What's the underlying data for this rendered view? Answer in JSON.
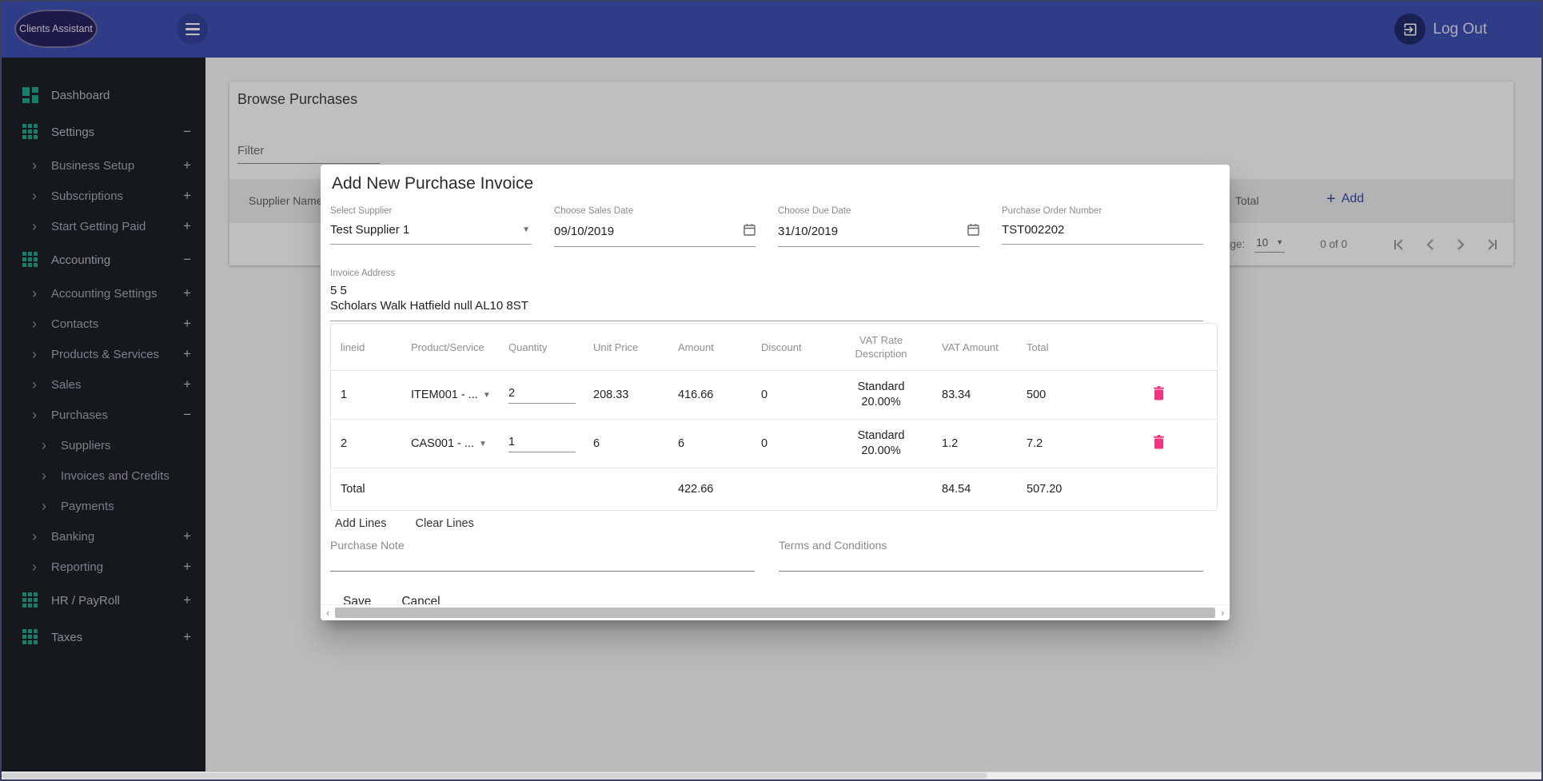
{
  "colors": {
    "accent": "#3f51b5",
    "teal": "#22a98c",
    "pink": "#f1357e",
    "add_link": "#3949ab"
  },
  "topbar": {
    "brand": "Clients Assistant",
    "logout_label": "Log Out"
  },
  "sidebar": {
    "items": [
      {
        "label": "Dashboard",
        "level": 0,
        "icon": "dashboard",
        "suffix": ""
      },
      {
        "label": "Settings",
        "level": 0,
        "icon": "apps",
        "suffix": "−"
      },
      {
        "label": "Business Setup",
        "level": 1,
        "icon": "",
        "suffix": "+"
      },
      {
        "label": "Subscriptions",
        "level": 1,
        "icon": "",
        "suffix": "+"
      },
      {
        "label": "Start Getting Paid",
        "level": 1,
        "icon": "",
        "suffix": "+"
      },
      {
        "label": "Accounting",
        "level": 0,
        "icon": "apps",
        "suffix": "−"
      },
      {
        "label": "Accounting Settings",
        "level": 1,
        "icon": "",
        "suffix": "+"
      },
      {
        "label": "Contacts",
        "level": 1,
        "icon": "",
        "suffix": "+"
      },
      {
        "label": "Products & Services",
        "level": 1,
        "icon": "",
        "suffix": "+"
      },
      {
        "label": "Sales",
        "level": 1,
        "icon": "",
        "suffix": "+"
      },
      {
        "label": "Purchases",
        "level": 1,
        "icon": "",
        "suffix": "−"
      },
      {
        "label": "Suppliers",
        "level": 2,
        "icon": "",
        "suffix": ""
      },
      {
        "label": "Invoices and Credits",
        "level": 2,
        "icon": "",
        "suffix": ""
      },
      {
        "label": "Payments",
        "level": 2,
        "icon": "",
        "suffix": ""
      },
      {
        "label": "Banking",
        "level": 1,
        "icon": "",
        "suffix": "+"
      },
      {
        "label": "Reporting",
        "level": 1,
        "icon": "",
        "suffix": "+"
      },
      {
        "label": "HR / PayRoll",
        "level": 0,
        "icon": "apps",
        "suffix": "+"
      },
      {
        "label": "Taxes",
        "level": 0,
        "icon": "apps",
        "suffix": "+"
      }
    ]
  },
  "background": {
    "page_title": "Browse Purchases",
    "filter_placeholder": "Filter",
    "supplier_header": "Supplier Name",
    "total_header": "Total",
    "add_label": "Add",
    "pagination": {
      "page_label": "page:",
      "page_size": "10",
      "range": "0 of 0"
    }
  },
  "modal": {
    "title": "Add New Purchase Invoice",
    "fields": {
      "supplier": {
        "label": "Select Supplier",
        "value": "Test Supplier 1"
      },
      "sales_date": {
        "label": "Choose Sales Date",
        "value": "09/10/2019"
      },
      "due_date": {
        "label": "Choose Due Date",
        "value": "31/10/2019"
      },
      "po_number": {
        "label": "Purchase Order Number",
        "value": "TST002202"
      }
    },
    "invoice_address": {
      "label": "Invoice Address",
      "line1": "5 5",
      "line2": "Scholars Walk Hatfield null AL10 8ST"
    },
    "table": {
      "headers": [
        "lineid",
        "Product/Service",
        "Quantity",
        "Unit Price",
        "Amount",
        "Discount",
        "VAT Rate Description",
        "VAT Amount",
        "Total"
      ],
      "rows": [
        {
          "lineid": "1",
          "product": "ITEM001 - ...",
          "quantity": "2",
          "unit_price": "208.33",
          "amount": "416.66",
          "discount": "0",
          "vat_rate_name": "Standard",
          "vat_rate_pct": "20.00%",
          "vat_amount": "83.34",
          "total": "500"
        },
        {
          "lineid": "2",
          "product": "CAS001 - ...",
          "quantity": "1",
          "unit_price": "6",
          "amount": "6",
          "discount": "0",
          "vat_rate_name": "Standard",
          "vat_rate_pct": "20.00%",
          "vat_amount": "1.2",
          "total": "7.2"
        }
      ],
      "total_row": {
        "label": "Total",
        "amount": "422.66",
        "vat_amount": "84.54",
        "total": "507.20"
      }
    },
    "line_buttons": {
      "add_lines": "Add Lines",
      "clear_lines": "Clear Lines"
    },
    "notes": {
      "purchase_note_placeholder": "Purchase Note",
      "terms_placeholder": "Terms and Conditions"
    },
    "footer_buttons": {
      "save": "Save",
      "cancel": "Cancel"
    }
  }
}
